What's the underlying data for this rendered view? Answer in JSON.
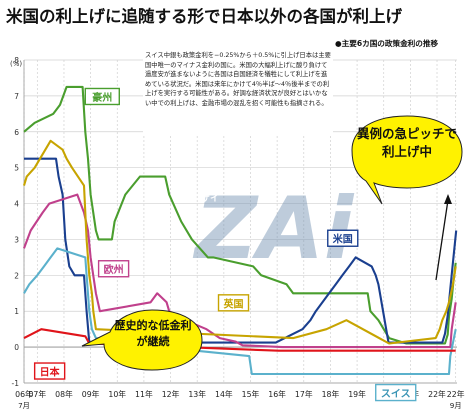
{
  "title": "米国の利上げに追随する形で日本以外の各国が利上げ",
  "chart_data": {
    "type": "line",
    "subtitle": "●主要6カ国の政策金利の推移",
    "y_unit": "(%)",
    "ylim": [
      -1,
      8
    ],
    "y_ticks": [
      8,
      7,
      6,
      5,
      4,
      3,
      2,
      1,
      0,
      -1
    ],
    "xlim": [
      2006.5,
      2022.75
    ],
    "x_ticks": [
      {
        "x": 2006.5,
        "label": "06年"
      },
      {
        "x": 2007,
        "label": "07年"
      },
      {
        "x": 2008,
        "label": "08年"
      },
      {
        "x": 2009,
        "label": "09年"
      },
      {
        "x": 2010,
        "label": "10年"
      },
      {
        "x": 2011,
        "label": "11年"
      },
      {
        "x": 2012,
        "label": "12年"
      },
      {
        "x": 2013,
        "label": "13年"
      },
      {
        "x": 2014,
        "label": "14年"
      },
      {
        "x": 2015,
        "label": "15年"
      },
      {
        "x": 2016,
        "label": "16年"
      },
      {
        "x": 2017,
        "label": "17年"
      },
      {
        "x": 2018,
        "label": "18年"
      },
      {
        "x": 2019,
        "label": "19年"
      },
      {
        "x": 2020,
        "label": "20年"
      },
      {
        "x": 2021,
        "label": "21年"
      },
      {
        "x": 2022,
        "label": "22年"
      },
      {
        "x": 2022.7,
        "label": "22年"
      }
    ],
    "x_sublabels": [
      {
        "x": 2006.5,
        "label": "7月"
      },
      {
        "x": 2022.7,
        "label": "9月"
      }
    ],
    "grid": true,
    "series": [
      {
        "name": "豪州",
        "color": "#4a9e2e",
        "values": [
          [
            2006.5,
            6.0
          ],
          [
            2006.9,
            6.25
          ],
          [
            2007.6,
            6.5
          ],
          [
            2007.85,
            6.75
          ],
          [
            2008.1,
            7.25
          ],
          [
            2008.7,
            7.25
          ],
          [
            2008.8,
            6.0
          ],
          [
            2008.9,
            5.25
          ],
          [
            2009.0,
            4.25
          ],
          [
            2009.2,
            3.25
          ],
          [
            2009.3,
            3.0
          ],
          [
            2009.8,
            3.0
          ],
          [
            2009.9,
            3.5
          ],
          [
            2010.3,
            4.25
          ],
          [
            2010.85,
            4.75
          ],
          [
            2011.8,
            4.75
          ],
          [
            2011.95,
            4.25
          ],
          [
            2012.4,
            3.5
          ],
          [
            2012.8,
            3.0
          ],
          [
            2013.4,
            2.5
          ],
          [
            2013.6,
            2.5
          ],
          [
            2015.1,
            2.25
          ],
          [
            2015.4,
            2.0
          ],
          [
            2016.35,
            1.75
          ],
          [
            2016.6,
            1.5
          ],
          [
            2019.4,
            1.5
          ],
          [
            2019.5,
            1.0
          ],
          [
            2019.8,
            0.75
          ],
          [
            2020.2,
            0.25
          ],
          [
            2020.85,
            0.1
          ],
          [
            2022.3,
            0.1
          ],
          [
            2022.4,
            0.35
          ],
          [
            2022.45,
            0.85
          ],
          [
            2022.55,
            1.35
          ],
          [
            2022.62,
            1.85
          ],
          [
            2022.7,
            2.35
          ]
        ]
      },
      {
        "name": "米国",
        "color": "#1a3f8f",
        "values": [
          [
            2006.5,
            5.25
          ],
          [
            2007.7,
            5.25
          ],
          [
            2007.8,
            4.75
          ],
          [
            2007.95,
            4.25
          ],
          [
            2008.05,
            3.0
          ],
          [
            2008.2,
            2.25
          ],
          [
            2008.4,
            2.0
          ],
          [
            2008.75,
            2.0
          ],
          [
            2008.85,
            1.0
          ],
          [
            2008.95,
            0.125
          ],
          [
            2015.95,
            0.125
          ],
          [
            2016.95,
            0.5
          ],
          [
            2017.25,
            0.75
          ],
          [
            2017.45,
            1.0
          ],
          [
            2017.95,
            1.5
          ],
          [
            2018.2,
            1.75
          ],
          [
            2018.45,
            2.0
          ],
          [
            2018.7,
            2.25
          ],
          [
            2018.95,
            2.5
          ],
          [
            2019.55,
            2.25
          ],
          [
            2019.7,
            2.0
          ],
          [
            2019.8,
            1.75
          ],
          [
            2020.18,
            0.125
          ],
          [
            2022.2,
            0.125
          ],
          [
            2022.3,
            0.375
          ],
          [
            2022.4,
            0.875
          ],
          [
            2022.5,
            1.625
          ],
          [
            2022.6,
            2.375
          ],
          [
            2022.72,
            3.25
          ]
        ]
      },
      {
        "name": "欧州",
        "color": "#c0408c",
        "values": [
          [
            2006.5,
            2.75
          ],
          [
            2006.75,
            3.25
          ],
          [
            2007.2,
            3.75
          ],
          [
            2007.45,
            4.0
          ],
          [
            2008.5,
            4.25
          ],
          [
            2008.75,
            3.75
          ],
          [
            2008.9,
            3.25
          ],
          [
            2009.0,
            2.5
          ],
          [
            2009.2,
            1.5
          ],
          [
            2009.35,
            1.0
          ],
          [
            2011.25,
            1.25
          ],
          [
            2011.5,
            1.5
          ],
          [
            2011.85,
            1.25
          ],
          [
            2011.95,
            1.0
          ],
          [
            2012.55,
            0.75
          ],
          [
            2013.35,
            0.5
          ],
          [
            2013.85,
            0.25
          ],
          [
            2014.45,
            0.15
          ],
          [
            2014.7,
            0.05
          ],
          [
            2016.2,
            0.0
          ],
          [
            2022.5,
            0.0
          ],
          [
            2022.55,
            0.5
          ],
          [
            2022.7,
            1.25
          ]
        ]
      },
      {
        "name": "英国",
        "color": "#c7a400",
        "values": [
          [
            2006.5,
            4.5
          ],
          [
            2006.6,
            4.75
          ],
          [
            2006.9,
            5.0
          ],
          [
            2007.1,
            5.25
          ],
          [
            2007.5,
            5.75
          ],
          [
            2007.95,
            5.5
          ],
          [
            2008.1,
            5.25
          ],
          [
            2008.3,
            5.0
          ],
          [
            2008.75,
            4.5
          ],
          [
            2008.85,
            3.0
          ],
          [
            2008.95,
            2.0
          ],
          [
            2009.05,
            1.5
          ],
          [
            2009.1,
            1.0
          ],
          [
            2009.2,
            0.5
          ],
          [
            2016.6,
            0.25
          ],
          [
            2017.85,
            0.5
          ],
          [
            2018.6,
            0.75
          ],
          [
            2020.2,
            0.1
          ],
          [
            2021.95,
            0.25
          ],
          [
            2022.1,
            0.5
          ],
          [
            2022.2,
            0.75
          ],
          [
            2022.35,
            1.0
          ],
          [
            2022.45,
            1.25
          ],
          [
            2022.6,
            1.75
          ],
          [
            2022.7,
            2.25
          ]
        ]
      },
      {
        "name": "スイス",
        "color": "#5bb1cc",
        "values": [
          [
            2006.5,
            1.5
          ],
          [
            2006.7,
            1.75
          ],
          [
            2007.0,
            2.0
          ],
          [
            2007.25,
            2.25
          ],
          [
            2007.5,
            2.5
          ],
          [
            2007.75,
            2.75
          ],
          [
            2008.8,
            2.5
          ],
          [
            2008.85,
            2.0
          ],
          [
            2008.95,
            1.0
          ],
          [
            2009.05,
            0.5
          ],
          [
            2009.2,
            0.25
          ],
          [
            2011.6,
            0.0
          ],
          [
            2014.95,
            -0.25
          ],
          [
            2015.05,
            -0.75
          ],
          [
            2022.45,
            -0.75
          ],
          [
            2022.5,
            -0.25
          ],
          [
            2022.7,
            0.5
          ]
        ]
      },
      {
        "name": "日本",
        "color": "#e0141a",
        "values": [
          [
            2006.5,
            0.25
          ],
          [
            2007.15,
            0.5
          ],
          [
            2008.8,
            0.3
          ],
          [
            2008.95,
            0.1
          ],
          [
            2016.05,
            -0.1
          ],
          [
            2022.7,
            -0.1
          ]
        ]
      }
    ],
    "annotations": {
      "note": "スイス中銀も政策金利を−0.25%から＋0.5%に引上げ日本は主要国中唯一のマイナス金利の国に。米国の大幅利上げに酸り負けて過度安が進まないように各国は自国経済を犠牲にして利上げを進めている状況だ。米国は来年にかけて4％半ば～4％後半までの利上げを実行する可能性がある。好調な経済状況が良好とはいかない中での利上げは、金融市場の混乱を招く可能性も指摘される。",
      "callout_rise": "異例の急ピッチで利上げ中",
      "callout_low": "歴史的な低金利が継続",
      "watermark": "ZAi",
      "watermark_small": "ザイ"
    }
  }
}
